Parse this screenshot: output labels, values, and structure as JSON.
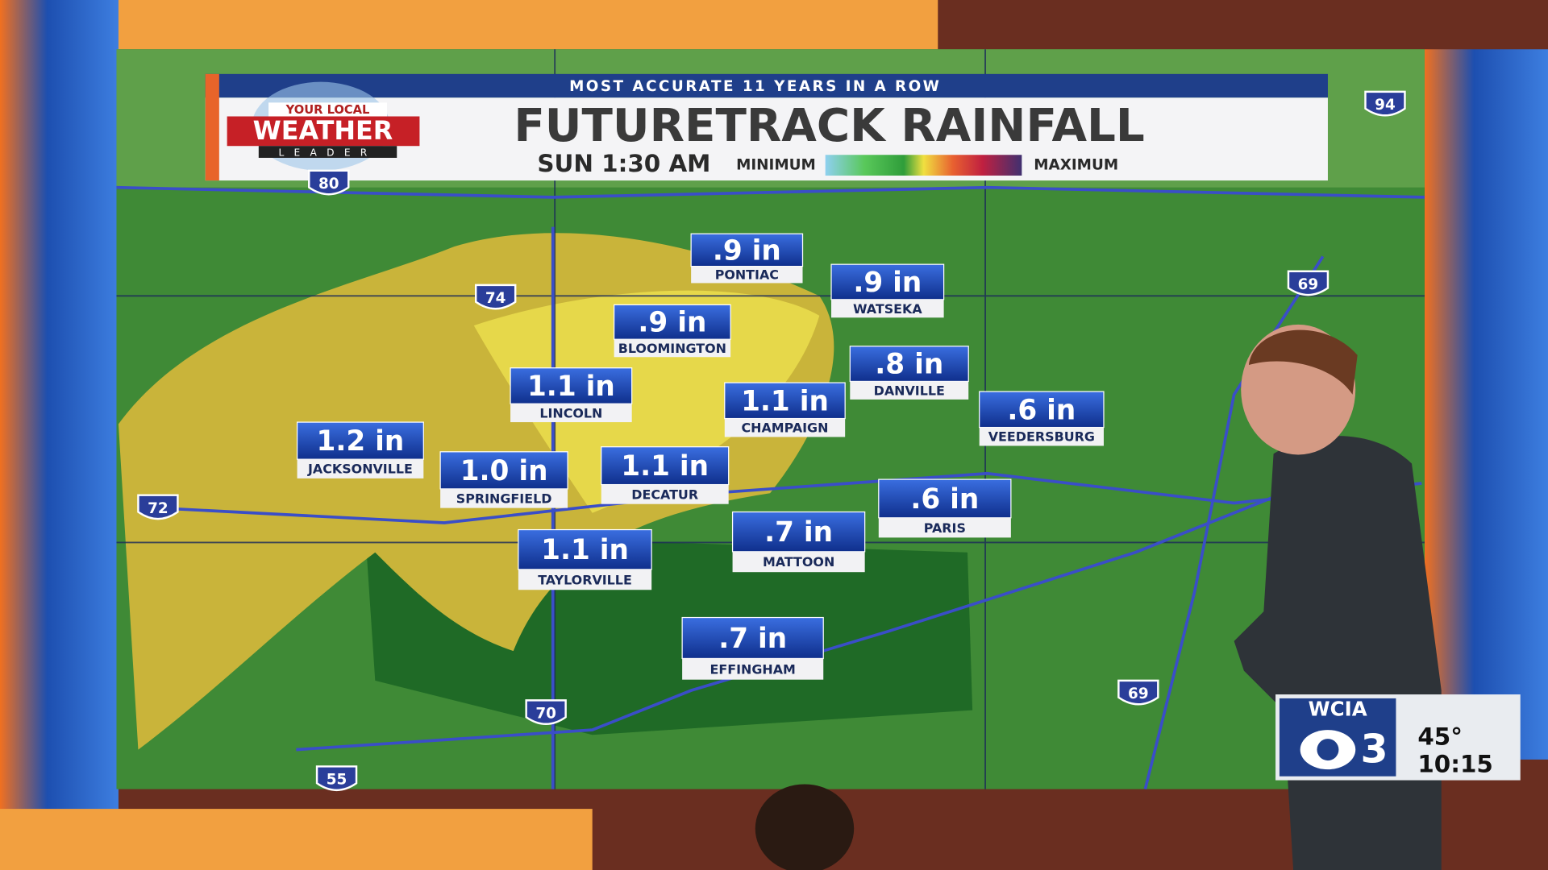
{
  "banner": {
    "tagline": "MOST ACCURATE 11 YEARS IN A ROW",
    "title": "FUTURETRACK RAINFALL",
    "time": "SUN 1:30 AM",
    "legend_min": "MINIMUM",
    "legend_max": "MAXIMUM"
  },
  "logo": {
    "line1": "YOUR LOCAL",
    "line2": "WEATHER",
    "line3": "LEADER"
  },
  "cities": [
    {
      "amount": ".9 in",
      "name": "PONTIAC"
    },
    {
      "amount": ".9 in",
      "name": "WATSEKA"
    },
    {
      "amount": ".9 in",
      "name": "BLOOMINGTON"
    },
    {
      "amount": "1.1 in",
      "name": "LINCOLN"
    },
    {
      "amount": "1.1 in",
      "name": "CHAMPAIGN"
    },
    {
      "amount": ".8 in",
      "name": "DANVILLE"
    },
    {
      "amount": "1.2 in",
      "name": "JACKSONVILLE"
    },
    {
      "amount": "1.0 in",
      "name": "SPRINGFIELD"
    },
    {
      "amount": "1.1 in",
      "name": "DECATUR"
    },
    {
      "amount": ".6 in",
      "name": "VEEDERSBURG"
    },
    {
      "amount": ".6 in",
      "name": "PARIS"
    },
    {
      "amount": ".7 in",
      "name": "MATTOON"
    },
    {
      "amount": "1.1 in",
      "name": "TAYLORVILLE"
    },
    {
      "amount": ".7 in",
      "name": "EFFINGHAM"
    }
  ],
  "interstates": [
    "80",
    "74",
    "72",
    "70",
    "55",
    "94",
    "69",
    "69"
  ],
  "station": {
    "name": "WCIA",
    "channel": "3",
    "temperature": "45°",
    "time": "10:15"
  }
}
